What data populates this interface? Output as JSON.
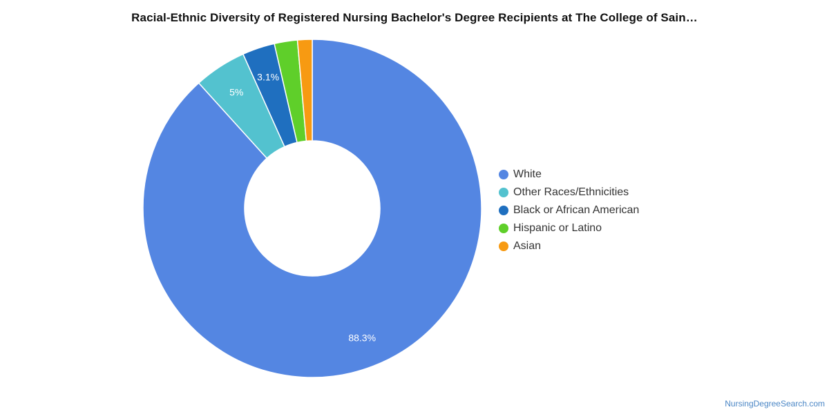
{
  "title": "Racial-Ethnic Diversity of Registered Nursing Bachelor's Degree Recipients at The College of Sain…",
  "source": "NursingDegreeSearch.com",
  "chart_data": {
    "type": "pie",
    "style": "donut",
    "legend_position": "right",
    "slices": [
      {
        "name": "White",
        "value": 88.3,
        "label": "88.3%",
        "color": "#5486e2"
      },
      {
        "name": "Other Races/Ethnicities",
        "value": 5.0,
        "label": "5%",
        "color": "#53c2cf"
      },
      {
        "name": "Black or African American",
        "value": 3.1,
        "label": "3.1%",
        "color": "#1f6fbf"
      },
      {
        "name": "Hispanic or Latino",
        "value": 2.2,
        "label": "",
        "color": "#5fcf2a"
      },
      {
        "name": "Asian",
        "value": 1.4,
        "label": "",
        "color": "#f79a12"
      }
    ]
  }
}
